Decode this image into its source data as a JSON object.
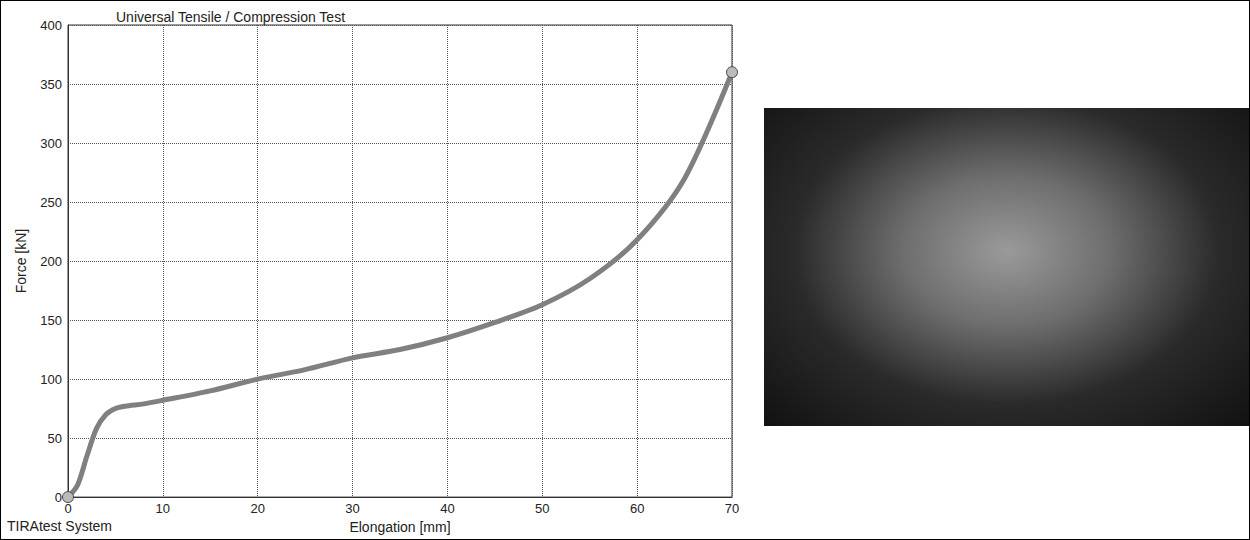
{
  "chart_data": {
    "type": "line",
    "title": "Universal Tensile / Compression Test",
    "annotation": "TIRAtest System",
    "x_label": "Elongation [mm]",
    "y_label": "Force [kN]",
    "x": [
      0,
      1,
      2,
      3,
      4,
      5,
      6,
      8,
      10,
      15,
      20,
      25,
      30,
      35,
      40,
      45,
      50,
      55,
      60,
      65,
      70
    ],
    "values": [
      0,
      10,
      35,
      58,
      70,
      75,
      77,
      79,
      82,
      90,
      100,
      108,
      118,
      125,
      135,
      148,
      163,
      185,
      218,
      270,
      360
    ],
    "color": "#808080",
    "marker": "circle",
    "xlim": [
      0,
      70
    ],
    "xticks": [
      0,
      10,
      20,
      30,
      40,
      50,
      60,
      70
    ],
    "ylim": [
      0,
      400
    ],
    "yticks": [
      0,
      50,
      100,
      150,
      200,
      250,
      300,
      350,
      400
    ],
    "grid": true
  }
}
